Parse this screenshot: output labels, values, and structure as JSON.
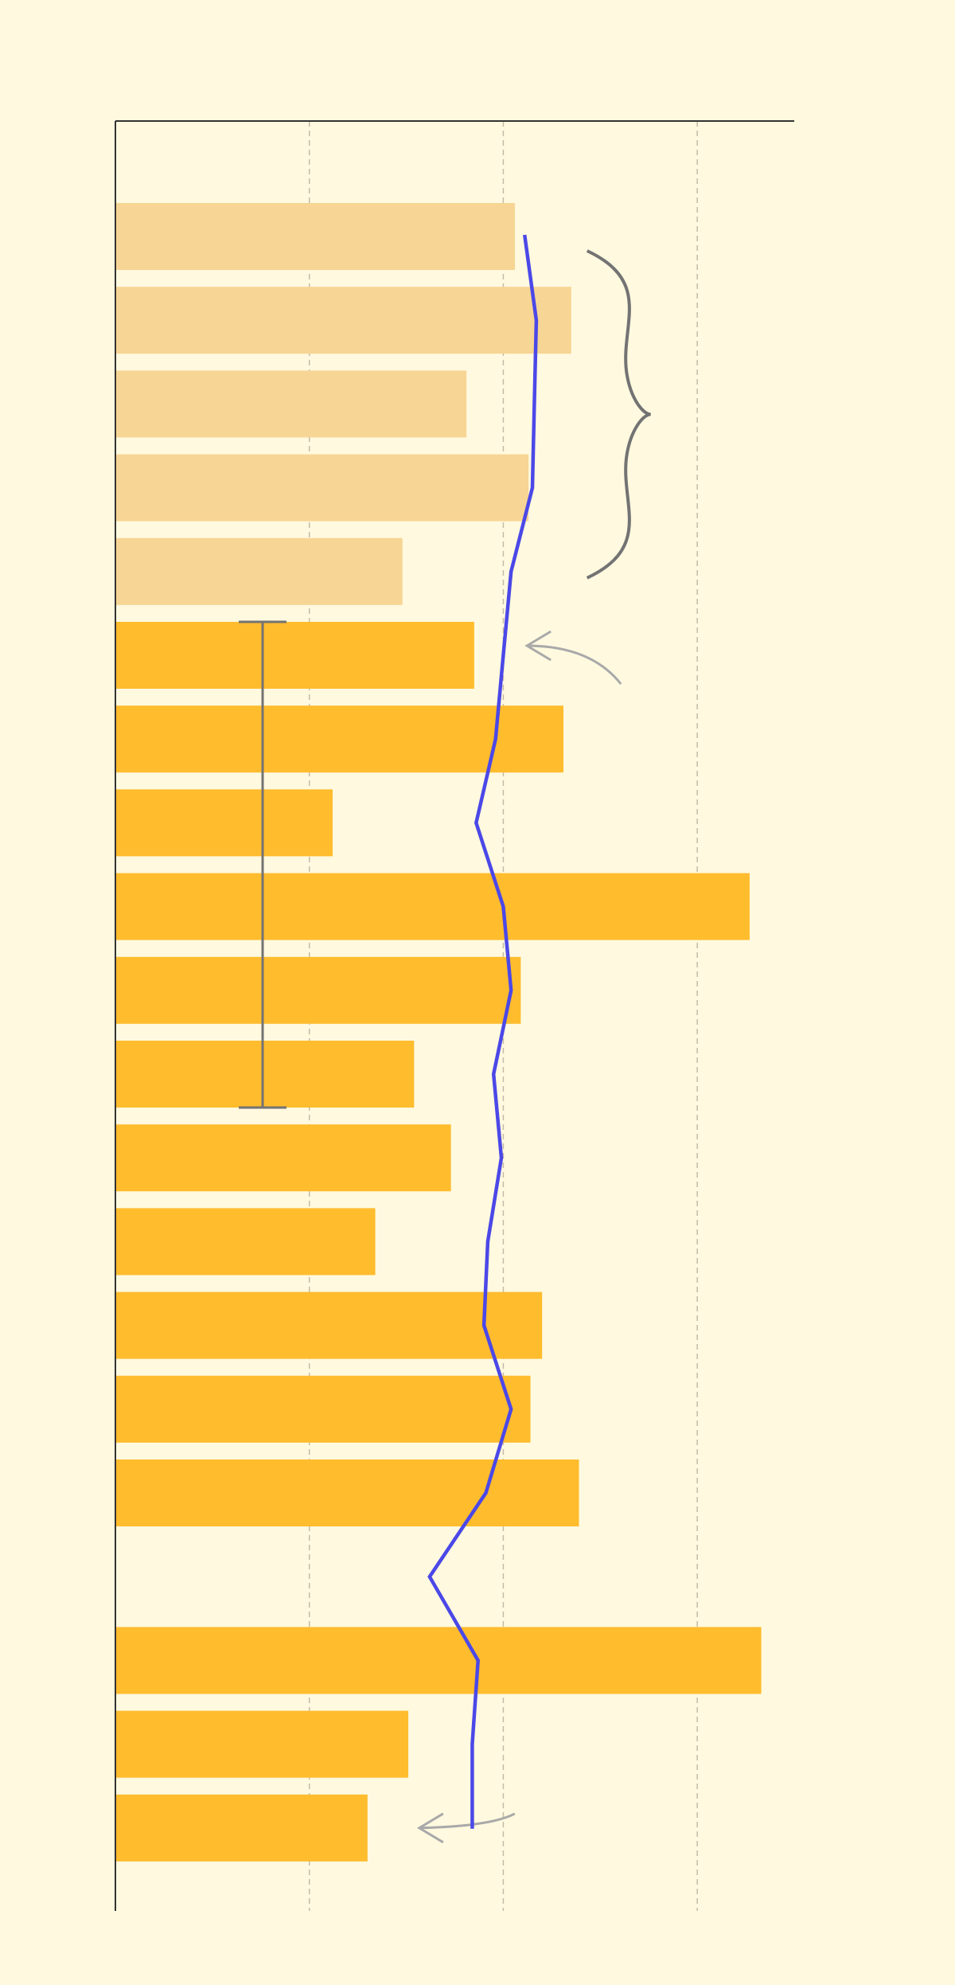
{
  "chart_data": {
    "type": "bar",
    "orientation": "horizontal",
    "title": "",
    "xlabel": "",
    "ylabel": "",
    "xlim": [
      0,
      3.5
    ],
    "grid": true,
    "grid_style": "dashed-vertical",
    "axes": "left-and-top",
    "categories": [
      "",
      "",
      "",
      "",
      "",
      "",
      "",
      "",
      "",
      "",
      "",
      "",
      "",
      "",
      "",
      "",
      "",
      "",
      "",
      ""
    ],
    "series": [
      {
        "type": "bar",
        "values": [
          2.06,
          2.35,
          1.81,
          2.13,
          1.48,
          1.85,
          2.31,
          1.12,
          3.27,
          2.09,
          1.54,
          1.73,
          1.34,
          2.2,
          2.14,
          2.39,
          null,
          3.33,
          1.51,
          1.3
        ],
        "highlight_count": 5
      },
      {
        "type": "line",
        "values": [
          2.11,
          2.17,
          2.16,
          2.15,
          2.04,
          2.0,
          1.96,
          1.86,
          2.0,
          2.04,
          1.95,
          1.99,
          1.92,
          1.9,
          2.04,
          1.91,
          1.62,
          1.87,
          1.84,
          1.84
        ]
      }
    ],
    "annotations": [
      {
        "type": "brace",
        "from_index": 0,
        "to_index": 4
      },
      {
        "type": "arrow",
        "target_index": 5
      },
      {
        "type": "range-bar",
        "from_index": 5,
        "to_index": 10,
        "value": 0.76
      },
      {
        "type": "arrow",
        "target_index": 19
      }
    ],
    "colors": {
      "background": "#fff9df",
      "bar": "#ffbc2d",
      "bar_faded": "#f7d594",
      "line": "#4b48e8",
      "grid": "#c4bba8",
      "axis": "#333333",
      "annotation": "#737373",
      "arrow": "#a9a9a9"
    }
  }
}
